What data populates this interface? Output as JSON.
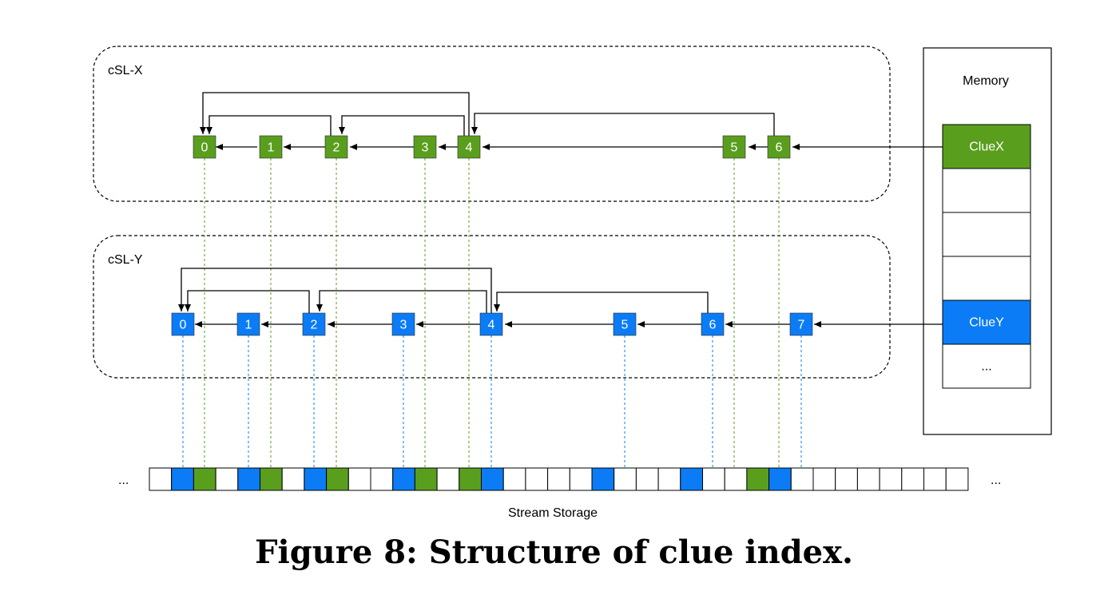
{
  "caption": "Figure 8: Structure of clue index.",
  "colors": {
    "green": "#5a9e1e",
    "blue": "#0b7cf5",
    "black": "#000000"
  },
  "csl_x": {
    "label": "cSL-X",
    "nodes": [
      "0",
      "1",
      "2",
      "3",
      "4",
      "5",
      "6"
    ]
  },
  "csl_y": {
    "label": "cSL-Y",
    "nodes": [
      "0",
      "1",
      "2",
      "3",
      "4",
      "5",
      "6",
      "7"
    ]
  },
  "memory": {
    "label": "Memory",
    "cells": [
      {
        "text": "ClueX",
        "kind": "green"
      },
      {
        "text": "",
        "kind": "empty"
      },
      {
        "text": "",
        "kind": "empty"
      },
      {
        "text": "",
        "kind": "empty"
      },
      {
        "text": "ClueY",
        "kind": "blue"
      },
      {
        "text": "...",
        "kind": "empty"
      }
    ]
  },
  "storage": {
    "label": "Stream Storage",
    "left_ellipsis": "...",
    "right_ellipsis": "...",
    "cells": [
      "w",
      "b",
      "g",
      "w",
      "b",
      "g",
      "w",
      "b",
      "g",
      "w",
      "w",
      "b",
      "g",
      "w",
      "g",
      "b",
      "w",
      "w",
      "w",
      "w",
      "b",
      "w",
      "w",
      "w",
      "b",
      "w",
      "w",
      "g",
      "b",
      "w",
      "w",
      "w",
      "w",
      "w",
      "w",
      "w",
      "w"
    ]
  }
}
